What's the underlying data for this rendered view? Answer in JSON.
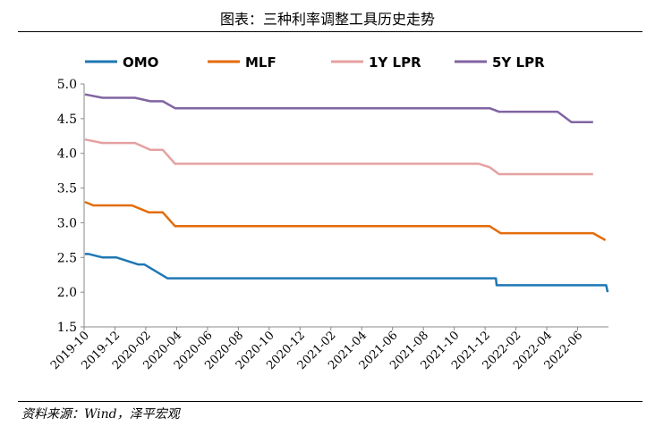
{
  "page": {
    "title": "图表：三种利率调整工具历史走势",
    "source": "资料来源：Wind，泽平宏观"
  },
  "chart_data": {
    "type": "line",
    "title": "图表：三种利率调整工具历史走势",
    "xlabel": "",
    "ylabel": "",
    "ylim": [
      1.5,
      5.0
    ],
    "yticks": [
      "1.5",
      "2.0",
      "2.5",
      "3.0",
      "3.5",
      "4.0",
      "4.5",
      "5.0"
    ],
    "xrange": [
      0,
      34
    ],
    "xticks": [
      {
        "m": 0,
        "label": "2019-10"
      },
      {
        "m": 2,
        "label": "2019-12"
      },
      {
        "m": 4,
        "label": "2020-02"
      },
      {
        "m": 6,
        "label": "2020-04"
      },
      {
        "m": 8,
        "label": "2020-06"
      },
      {
        "m": 10,
        "label": "2020-08"
      },
      {
        "m": 12,
        "label": "2020-10"
      },
      {
        "m": 14,
        "label": "2020-12"
      },
      {
        "m": 16,
        "label": "2021-02"
      },
      {
        "m": 18,
        "label": "2021-04"
      },
      {
        "m": 20,
        "label": "2021-06"
      },
      {
        "m": 22,
        "label": "2021-08"
      },
      {
        "m": 24,
        "label": "2021-10"
      },
      {
        "m": 26,
        "label": "2021-12"
      },
      {
        "m": 28,
        "label": "2022-02"
      },
      {
        "m": 30,
        "label": "2022-04"
      },
      {
        "m": 32,
        "label": "2022-06"
      }
    ],
    "grid": false,
    "legend": "top",
    "series": [
      {
        "name": "OMO",
        "color": "#1f77b4",
        "points": [
          [
            0.05,
            2.55
          ],
          [
            0.3,
            2.55
          ],
          [
            1.2,
            2.5
          ],
          [
            2.1,
            2.5
          ],
          [
            3.5,
            2.4
          ],
          [
            3.9,
            2.4
          ],
          [
            5.4,
            2.2
          ],
          [
            26.7,
            2.2
          ],
          [
            26.75,
            2.1
          ],
          [
            33.85,
            2.1
          ],
          [
            33.95,
            2.0
          ]
        ]
      },
      {
        "name": "MLF",
        "color": "#e36c09",
        "points": [
          [
            0.05,
            3.3
          ],
          [
            0.6,
            3.25
          ],
          [
            3.1,
            3.25
          ],
          [
            4.2,
            3.15
          ],
          [
            5.1,
            3.15
          ],
          [
            5.9,
            2.95
          ],
          [
            26.3,
            2.95
          ],
          [
            27.0,
            2.85
          ],
          [
            33.0,
            2.85
          ],
          [
            33.8,
            2.75
          ]
        ]
      },
      {
        "name": "1Y LPR",
        "color": "#e6a0a0",
        "points": [
          [
            0.05,
            4.2
          ],
          [
            1.2,
            4.15
          ],
          [
            3.3,
            4.15
          ],
          [
            4.3,
            4.05
          ],
          [
            5.1,
            4.05
          ],
          [
            5.9,
            3.85
          ],
          [
            25.6,
            3.85
          ],
          [
            26.3,
            3.8
          ],
          [
            26.9,
            3.7
          ],
          [
            33.0,
            3.7
          ]
        ]
      },
      {
        "name": "5Y LPR",
        "color": "#8064a2",
        "points": [
          [
            0.05,
            4.85
          ],
          [
            1.2,
            4.8
          ],
          [
            3.3,
            4.8
          ],
          [
            4.3,
            4.75
          ],
          [
            5.1,
            4.75
          ],
          [
            5.9,
            4.65
          ],
          [
            26.3,
            4.65
          ],
          [
            26.9,
            4.6
          ],
          [
            30.7,
            4.6
          ],
          [
            31.6,
            4.45
          ],
          [
            33.0,
            4.45
          ]
        ]
      }
    ]
  }
}
